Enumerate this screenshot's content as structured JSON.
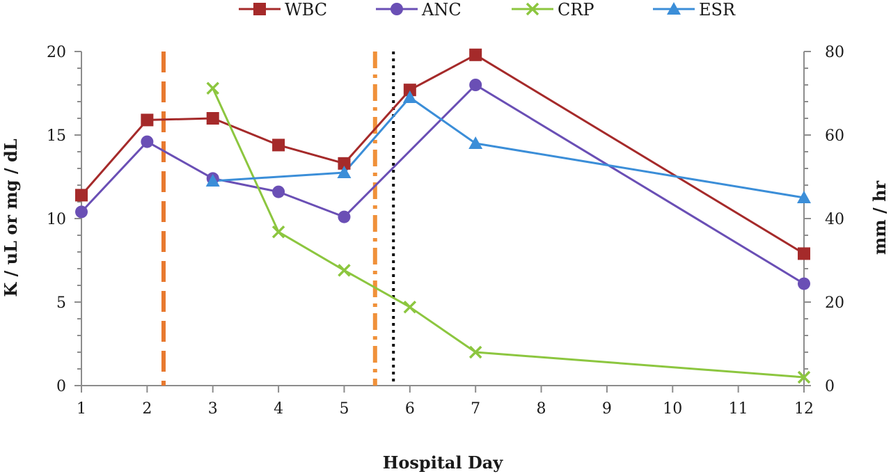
{
  "chart_data": {
    "type": "line",
    "title": "",
    "xlabel": "Hospital Day",
    "ylabel_left": "K / uL or mg / dL",
    "ylabel_right": "mm / hr",
    "categories": [
      "1",
      "2",
      "3",
      "4",
      "5",
      "6",
      "7",
      "8",
      "9",
      "10",
      "11",
      "12"
    ],
    "ylim_left": [
      0,
      20
    ],
    "ylim_right": [
      0,
      80
    ],
    "yticks_left": [
      "0",
      "5",
      "10",
      "15",
      "20"
    ],
    "yticks_right": [
      "0",
      "20",
      "40",
      "60",
      "80"
    ],
    "grid": false,
    "legend_position": "top",
    "series": [
      {
        "name": "WBC",
        "axis": "left",
        "color": "#a52a2a",
        "marker": "square",
        "points": [
          [
            1,
            11.4
          ],
          [
            2,
            15.9
          ],
          [
            3,
            16.0
          ],
          [
            4,
            14.4
          ],
          [
            5,
            13.3
          ],
          [
            6,
            17.7
          ],
          [
            7,
            19.8
          ],
          [
            12,
            7.9
          ]
        ]
      },
      {
        "name": "ANC",
        "axis": "left",
        "color": "#6a4fb5",
        "marker": "circle",
        "points": [
          [
            1,
            10.4
          ],
          [
            2,
            14.6
          ],
          [
            3,
            12.4
          ],
          [
            4,
            11.6
          ],
          [
            5,
            10.1
          ],
          [
            7,
            18.0
          ],
          [
            12,
            6.1
          ]
        ]
      },
      {
        "name": "CRP",
        "axis": "left",
        "color": "#8cc63f",
        "marker": "x",
        "points": [
          [
            3,
            17.8
          ],
          [
            4,
            9.2
          ],
          [
            5,
            6.9
          ],
          [
            6,
            4.7
          ],
          [
            7,
            2.0
          ],
          [
            12,
            0.5
          ]
        ]
      },
      {
        "name": "ESR",
        "axis": "right",
        "color": "#3b8ed8",
        "marker": "triangle",
        "points": [
          [
            3,
            49
          ],
          [
            5,
            51
          ],
          [
            6,
            69
          ],
          [
            7,
            58
          ],
          [
            12,
            45
          ]
        ]
      }
    ],
    "reference_lines": [
      {
        "x": 2.25,
        "style": "dashed",
        "color": "#e8792f"
      },
      {
        "x": 5.47,
        "style": "dashdot",
        "color": "#f0913a"
      },
      {
        "x": 5.75,
        "style": "dotted",
        "color": "#000000"
      }
    ]
  }
}
